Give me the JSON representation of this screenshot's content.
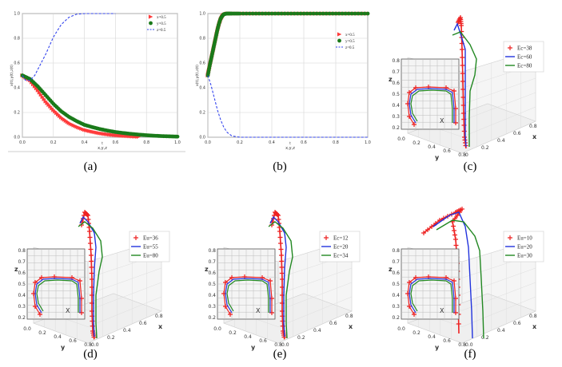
{
  "chart_data": [
    {
      "id": "a",
      "caption": "(a)",
      "type": "line",
      "xlabel": "x,y,z",
      "ylabel": "x(t),y(t),z(t)",
      "xlim": [
        0,
        1
      ],
      "ylim": [
        0,
        1
      ],
      "xticks": [
        "0.0",
        "0.2",
        "0.4",
        "0.6",
        "0.8",
        "1.0"
      ],
      "yticks": [
        "0.0",
        "0.2",
        "0.4",
        "0.6",
        "0.8",
        "1.0"
      ],
      "legend_position": "top-right",
      "series": [
        {
          "name": "x=0.5",
          "marker": "triangle",
          "color": "#ff3b3b",
          "x": [
            0,
            0.05,
            0.1,
            0.15,
            0.2,
            0.25,
            0.3,
            0.35,
            0.4,
            0.45,
            0.5,
            0.55,
            0.6,
            0.65,
            0.7,
            0.75
          ],
          "y": [
            0.5,
            0.46,
            0.38,
            0.29,
            0.22,
            0.16,
            0.115,
            0.085,
            0.06,
            0.045,
            0.032,
            0.023,
            0.016,
            0.011,
            0.007,
            0.004
          ]
        },
        {
          "name": "y=0.5",
          "marker": "dot",
          "color": "#1a7a1a",
          "x": [
            0,
            0.05,
            0.1,
            0.15,
            0.2,
            0.25,
            0.3,
            0.35,
            0.4,
            0.45,
            0.5,
            0.55,
            0.6,
            0.65,
            0.7,
            0.75,
            0.8,
            0.85,
            0.9,
            0.95,
            1.0
          ],
          "y": [
            0.5,
            0.47,
            0.41,
            0.34,
            0.27,
            0.21,
            0.165,
            0.13,
            0.1,
            0.082,
            0.066,
            0.053,
            0.042,
            0.034,
            0.027,
            0.021,
            0.016,
            0.012,
            0.009,
            0.007,
            0.005
          ]
        },
        {
          "name": "z=0.5",
          "marker": "dash",
          "color": "#3344ee",
          "x": [
            0,
            0.02,
            0.05,
            0.08,
            0.1,
            0.15,
            0.2,
            0.25,
            0.3,
            0.35,
            0.4,
            0.45,
            0.5,
            0.6
          ],
          "y": [
            0.5,
            0.46,
            0.46,
            0.5,
            0.55,
            0.67,
            0.81,
            0.91,
            0.97,
            0.995,
            1.0,
            1.0,
            1.0,
            1.0
          ]
        }
      ]
    },
    {
      "id": "b",
      "caption": "(b)",
      "type": "line",
      "xlabel": "x,y,z",
      "ylabel": "x(t),y(t),z(t)",
      "xlim": [
        0,
        1
      ],
      "ylim": [
        0,
        1
      ],
      "xticks": [
        "0.0",
        "0.2",
        "0.4",
        "0.6",
        "0.8",
        "1.0"
      ],
      "yticks": [
        "0.0",
        "0.2",
        "0.4",
        "0.6",
        "0.8",
        "1.0"
      ],
      "legend_position": "center-right",
      "series": [
        {
          "name": "x=0.5",
          "marker": "triangle",
          "color": "#ff3b3b",
          "x": [
            0,
            0.01,
            0.02,
            0.03,
            0.04,
            0.05,
            0.06,
            0.07,
            0.08,
            0.09,
            0.1,
            0.12,
            0.15,
            0.2,
            0.3,
            0.4,
            0.5,
            0.6,
            0.7,
            0.8,
            0.9,
            1.0
          ],
          "y": [
            0.5,
            0.56,
            0.62,
            0.68,
            0.74,
            0.8,
            0.86,
            0.91,
            0.95,
            0.975,
            0.99,
            1,
            1,
            1,
            1,
            1,
            1,
            1,
            1,
            1,
            1,
            1
          ]
        },
        {
          "name": "y=0.5",
          "marker": "dot",
          "color": "#1a7a1a",
          "x": [
            0,
            0.01,
            0.02,
            0.03,
            0.04,
            0.05,
            0.06,
            0.07,
            0.08,
            0.09,
            0.1,
            0.12,
            0.15,
            0.2,
            0.3,
            0.4,
            0.5,
            0.6,
            0.7,
            0.8,
            0.9,
            1.0
          ],
          "y": [
            0.5,
            0.57,
            0.63,
            0.69,
            0.75,
            0.81,
            0.87,
            0.92,
            0.96,
            0.98,
            0.995,
            1,
            1,
            1,
            1,
            1,
            1,
            1,
            1,
            1,
            1,
            1
          ]
        },
        {
          "name": "z=0.5",
          "marker": "dash",
          "color": "#3344ee",
          "x": [
            0,
            0.02,
            0.04,
            0.06,
            0.08,
            0.1,
            0.12,
            0.15,
            0.2,
            0.3,
            0.5,
            1.0
          ],
          "y": [
            0.5,
            0.42,
            0.32,
            0.22,
            0.14,
            0.08,
            0.04,
            0.01,
            0,
            0,
            0,
            0
          ]
        }
      ]
    },
    {
      "id": "c",
      "caption": "(c)",
      "type": "line3d",
      "axis_labels": {
        "x": "x",
        "y": "y",
        "z": "z",
        "inset": "X"
      },
      "zticks": [
        "0.2",
        "0.3",
        "0.4",
        "0.5",
        "0.6",
        "0.7",
        "0.8"
      ],
      "yticks": [
        "0.0",
        "0.2",
        "0.4",
        "0.6",
        "0.8"
      ],
      "xticks": [
        "0",
        "0.2",
        "0.4",
        "0.6",
        "0.8"
      ],
      "legend_position": "top-right",
      "series": [
        {
          "name": "Ec=38",
          "marker": "plus",
          "color": "#ee2222"
        },
        {
          "name": "Ec=60",
          "marker": "line",
          "color": "#2233dd"
        },
        {
          "name": "Ec=80",
          "marker": "line",
          "color": "#228822"
        }
      ]
    },
    {
      "id": "d",
      "caption": "(d)",
      "type": "line3d",
      "axis_labels": {
        "x": "x",
        "y": "y",
        "z": "z",
        "inset": "X"
      },
      "zticks": [
        "0.2",
        "0.3",
        "0.4",
        "0.5",
        "0.6",
        "0.7",
        "0.8"
      ],
      "yticks": [
        "0.0",
        "0.2",
        "0.4",
        "0.6",
        "0.8"
      ],
      "xticks": [
        "0.0",
        "0.2",
        "0.4",
        "0.6",
        "0.8"
      ],
      "legend_position": "top-right",
      "series": [
        {
          "name": "Eu=36",
          "marker": "plus",
          "color": "#ee2222"
        },
        {
          "name": "Eu=55",
          "marker": "line",
          "color": "#2233dd"
        },
        {
          "name": "Eu=80",
          "marker": "line",
          "color": "#228822"
        }
      ]
    },
    {
      "id": "e",
      "caption": "(e)",
      "type": "line3d",
      "axis_labels": {
        "x": "x",
        "y": "y",
        "z": "z",
        "inset": "X"
      },
      "zticks": [
        "0.2",
        "0.3",
        "0.4",
        "0.5",
        "0.6",
        "0.7",
        "0.8"
      ],
      "yticks": [
        "0.0",
        "0.2",
        "0.4",
        "0.6",
        "0.8"
      ],
      "xticks": [
        "0.0",
        "0.2",
        "0.4",
        "0.6",
        "0.8"
      ],
      "legend_position": "top-right",
      "series": [
        {
          "name": "Ec=12",
          "marker": "plus",
          "color": "#ee2222"
        },
        {
          "name": "Ec=20",
          "marker": "line",
          "color": "#2233dd"
        },
        {
          "name": "Ec=34",
          "marker": "line",
          "color": "#228822"
        }
      ]
    },
    {
      "id": "f",
      "caption": "(f)",
      "type": "line3d",
      "axis_labels": {
        "x": "x",
        "y": "y",
        "z": "z",
        "inset": "X"
      },
      "zticks": [
        "0.2",
        "0.3",
        "0.4",
        "0.5",
        "0.6",
        "0.7",
        "0.8"
      ],
      "yticks": [
        "0.0",
        "0.2",
        "0.4",
        "0.6",
        "0.8"
      ],
      "xticks": [
        "0.0",
        "0.2",
        "0.4",
        "0.6",
        "0.8"
      ],
      "legend_position": "top-right",
      "series": [
        {
          "name": "Eu=10",
          "marker": "plus",
          "color": "#ee2222"
        },
        {
          "name": "Eu=20",
          "marker": "line",
          "color": "#2233dd"
        },
        {
          "name": "Eu=30",
          "marker": "line",
          "color": "#228822"
        }
      ]
    }
  ]
}
